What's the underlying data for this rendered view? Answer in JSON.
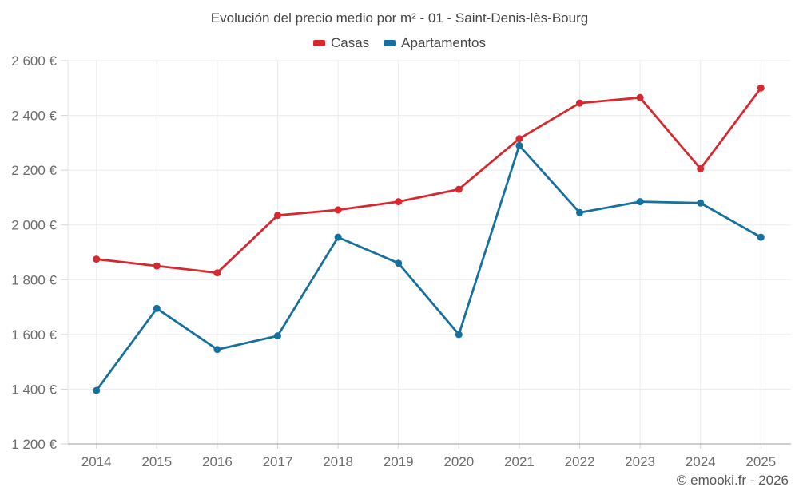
{
  "title": "Evolución del precio medio por m² - 01 - Saint-Denis-lès-Bourg",
  "legend": [
    {
      "label": "Casas",
      "color": "#d7282f"
    },
    {
      "label": "Apartamentos",
      "color": "#17719e"
    }
  ],
  "footer": "© emooki.fr - 2026",
  "chart_data": {
    "type": "line",
    "title": "Evolución del precio medio por m² - 01 - Saint-Denis-lès-Bourg",
    "categories": [
      "2014",
      "2015",
      "2016",
      "2017",
      "2018",
      "2019",
      "2020",
      "2021",
      "2022",
      "2023",
      "2024",
      "2025"
    ],
    "series": [
      {
        "name": "Casas",
        "color": "#d7282f",
        "values": [
          1875,
          1850,
          1825,
          2035,
          2055,
          2085,
          2130,
          2315,
          2445,
          2465,
          2205,
          2500
        ]
      },
      {
        "name": "Apartamentos",
        "color": "#17719e",
        "values": [
          1395,
          1695,
          1545,
          1595,
          1955,
          1860,
          1600,
          2290,
          2045,
          2085,
          2080,
          1955
        ]
      }
    ],
    "xlabel": "",
    "ylabel": "",
    "ylim": [
      1200,
      2600
    ],
    "ytick_step": 200,
    "ytick_suffix": " €",
    "grid": true,
    "legend_position": "top"
  }
}
